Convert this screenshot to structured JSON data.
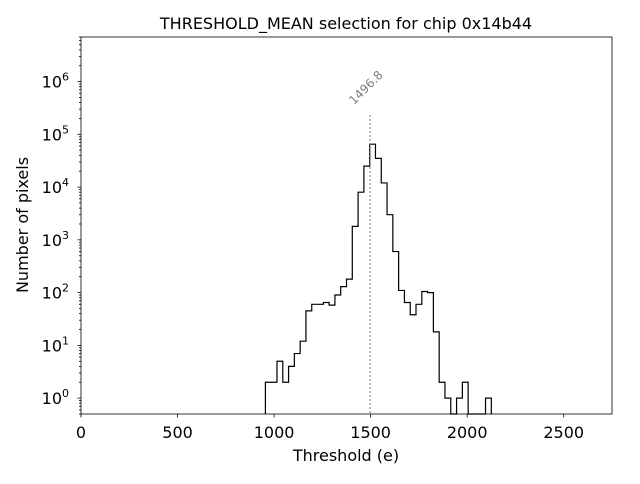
{
  "chart_data": {
    "type": "histogram",
    "title": "THRESHOLD_MEAN selection for chip 0x14b44",
    "xlabel": "Threshold (e)",
    "ylabel": "Number of pixels",
    "xlim": [
      0,
      2750
    ],
    "ylim": [
      0.5,
      7000000
    ],
    "yscale": "log",
    "x_ticks": [
      0,
      500,
      1000,
      1500,
      2000,
      2500
    ],
    "x_tick_labels": [
      "0",
      "500",
      "1000",
      "1500",
      "2000",
      "2500"
    ],
    "y_ticks": [
      1,
      10,
      100,
      1000,
      10000,
      100000,
      1000000
    ],
    "y_tick_base": "10",
    "y_tick_exponents": [
      "0",
      "1",
      "2",
      "3",
      "4",
      "5",
      "6"
    ],
    "bin_edges": [
      955,
      985,
      1015,
      1045,
      1075,
      1105,
      1135,
      1165,
      1195,
      1225,
      1255,
      1285,
      1315,
      1345,
      1375,
      1405,
      1435,
      1465,
      1495,
      1525,
      1555,
      1585,
      1615,
      1645,
      1675,
      1705,
      1735,
      1765,
      1795,
      1825,
      1855,
      1885,
      1915,
      1945,
      1975,
      2005,
      2035,
      2065,
      2095,
      2125
    ],
    "counts": [
      2,
      2,
      5,
      2,
      4,
      7,
      12,
      45,
      60,
      60,
      65,
      58,
      90,
      130,
      180,
      1800,
      8000,
      25000,
      65000,
      35000,
      12000,
      3000,
      600,
      110,
      65,
      38,
      60,
      105,
      100,
      18,
      2,
      1,
      0,
      1,
      2,
      0,
      0,
      0,
      1
    ],
    "series": [
      {
        "name": "Number of pixels",
        "style": "step",
        "color": "#000000"
      }
    ],
    "annotation": {
      "value": 1496.8,
      "label": "1496.8",
      "style": "dotted",
      "color": "#808080",
      "y_top": 230000
    }
  }
}
